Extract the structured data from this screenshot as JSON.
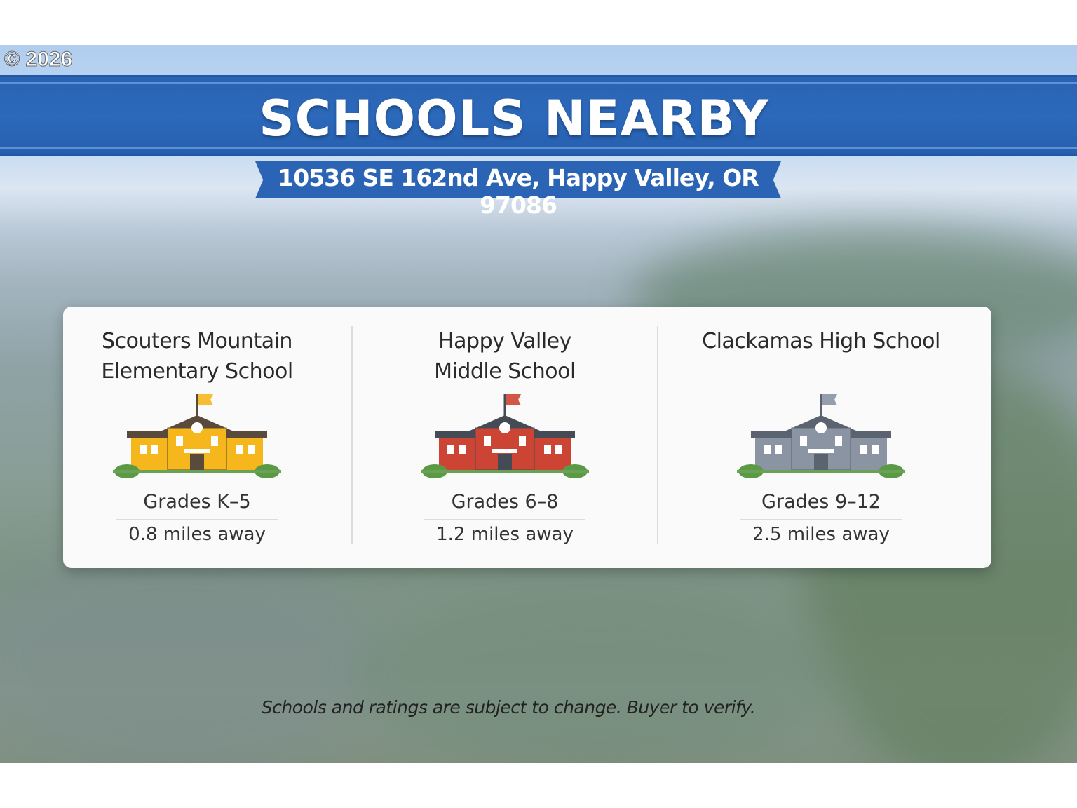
{
  "copyright": "© 2026",
  "title": "SCHOOLS NEARBY",
  "address": "10536 SE 162nd Ave, Happy Valley, OR 97086",
  "colors": {
    "banner": "#2c69bb",
    "card": "#fafafa"
  },
  "schools": [
    {
      "name_line1": "Scouters Mountain",
      "name_line2": "Elementary School",
      "grades": "Grades K–5",
      "distance": "0.8 miles away",
      "icon": "school-building-icon",
      "color": "#f6b71c",
      "roof": "#5a4a3c"
    },
    {
      "name_line1": "Happy Valley",
      "name_line2": "Middle School",
      "grades": "Grades 6–8",
      "distance": "1.2 miles away",
      "icon": "school-building-icon",
      "color": "#cc4433",
      "roof": "#454b55"
    },
    {
      "name_line1": "Clackamas High School",
      "name_line2": "",
      "grades": "Grades 9–12",
      "distance": "2.5 miles away",
      "icon": "school-building-icon",
      "color": "#8a94a3",
      "roof": "#5b6370"
    }
  ],
  "disclaimer": "Schools and ratings are subject to change. Buyer to verify."
}
